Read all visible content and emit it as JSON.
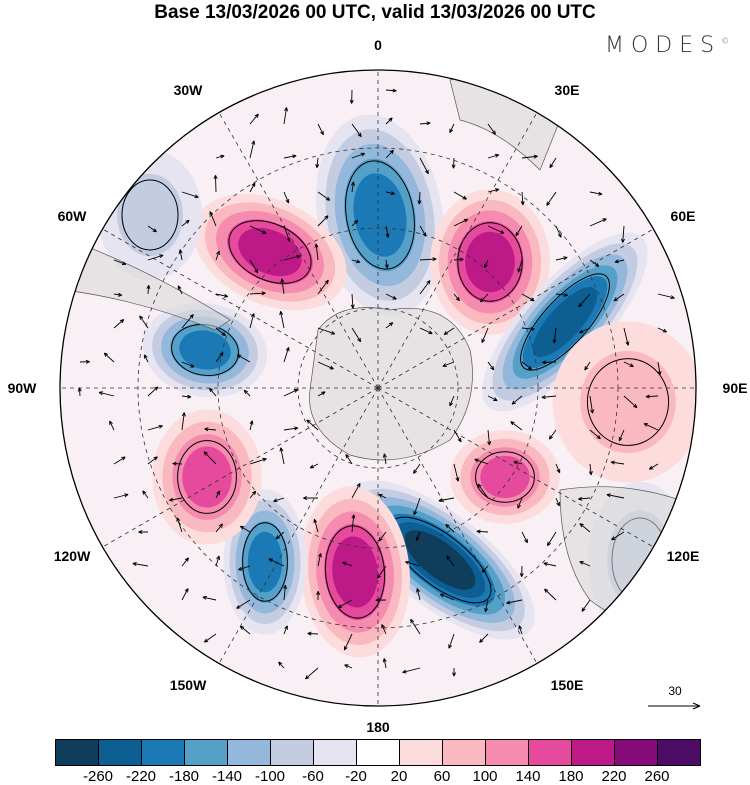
{
  "title": "Base 13/03/2026 00 UTC, valid 13/03/2026 00 UTC",
  "logo": {
    "text": "MODES",
    "mark": "©"
  },
  "longitude_labels": [
    "0",
    "30E",
    "60E",
    "90E",
    "120E",
    "150E",
    "180",
    "150W",
    "120W",
    "90W",
    "60W",
    "30W"
  ],
  "reference_vector": {
    "label": "30"
  },
  "colorbar": {
    "levels": [
      "-260",
      "-220",
      "-180",
      "-140",
      "-100",
      "-60",
      "-20",
      "20",
      "60",
      "100",
      "140",
      "180",
      "220",
      "260"
    ],
    "colors": [
      "#0f3d5c",
      "#0d5f93",
      "#1b7ab6",
      "#55a0c9",
      "#94b8db",
      "#c3cce1",
      "#e6e4f0",
      "#ffffff",
      "#fcdcdc",
      "#fab9c0",
      "#f58cb0",
      "#e64a9c",
      "#bd1a87",
      "#850c78",
      "#4d0c66"
    ]
  },
  "land_color": "#d9d9d9"
}
